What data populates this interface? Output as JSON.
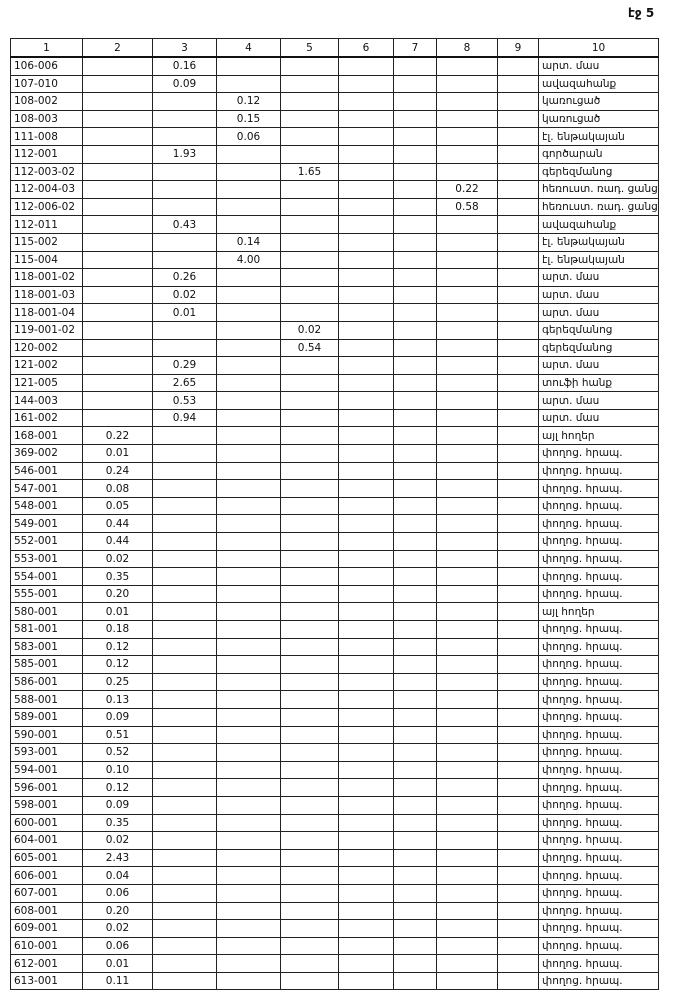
{
  "header": {
    "page": "էջ 5"
  },
  "table": {
    "header": [
      "1",
      "2",
      "3",
      "4",
      "5",
      "6",
      "7",
      "8",
      "9",
      "10"
    ],
    "rows": [
      [
        "106-006",
        null,
        "0.16",
        null,
        null,
        null,
        null,
        null,
        null,
        "արտ. մաս"
      ],
      [
        "107-010",
        null,
        "0.09",
        null,
        null,
        null,
        null,
        null,
        null,
        "ավազահանք"
      ],
      [
        "108-002",
        null,
        null,
        "0.12",
        null,
        null,
        null,
        null,
        null,
        "կառուցած"
      ],
      [
        "108-003",
        null,
        null,
        "0.15",
        null,
        null,
        null,
        null,
        null,
        "կառուցած"
      ],
      [
        "111-008",
        null,
        null,
        "0.06",
        null,
        null,
        null,
        null,
        null,
        "էլ. ենթակայան"
      ],
      [
        "112-001",
        null,
        "1.93",
        null,
        null,
        null,
        null,
        null,
        null,
        "գործարան"
      ],
      [
        "112-003-02",
        null,
        null,
        null,
        "1.65",
        null,
        null,
        null,
        null,
        "գերեզմանոց"
      ],
      [
        "112-004-03",
        null,
        null,
        null,
        null,
        null,
        null,
        "0.22",
        null,
        "հեռուստ. ռադ. ցանց"
      ],
      [
        "112-006-02",
        null,
        null,
        null,
        null,
        null,
        null,
        "0.58",
        null,
        "հեռուստ. ռադ. ցանց"
      ],
      [
        "112-011",
        null,
        "0.43",
        null,
        null,
        null,
        null,
        null,
        null,
        "ավազահանք"
      ],
      [
        "115-002",
        null,
        null,
        "0.14",
        null,
        null,
        null,
        null,
        null,
        "էլ. ենթակայան"
      ],
      [
        "115-004",
        null,
        null,
        "4.00",
        null,
        null,
        null,
        null,
        null,
        "էլ. ենթակայան"
      ],
      [
        "118-001-02",
        null,
        "0.26",
        null,
        null,
        null,
        null,
        null,
        null,
        "արտ. մաս"
      ],
      [
        "118-001-03",
        null,
        "0.02",
        null,
        null,
        null,
        null,
        null,
        null,
        "արտ. մաս"
      ],
      [
        "118-001-04",
        null,
        "0.01",
        null,
        null,
        null,
        null,
        null,
        null,
        "արտ. մաս"
      ],
      [
        "119-001-02",
        null,
        null,
        null,
        "0.02",
        null,
        null,
        null,
        null,
        "գերեզմանոց"
      ],
      [
        "120-002",
        null,
        null,
        null,
        "0.54",
        null,
        null,
        null,
        null,
        "գերեզմանոց"
      ],
      [
        "121-002",
        null,
        "0.29",
        null,
        null,
        null,
        null,
        null,
        null,
        "արտ. մաս"
      ],
      [
        "121-005",
        null,
        "2.65",
        null,
        null,
        null,
        null,
        null,
        null,
        "տուֆի հանք"
      ],
      [
        "144-003",
        null,
        "0.53",
        null,
        null,
        null,
        null,
        null,
        null,
        "արտ. մաս"
      ],
      [
        "161-002",
        null,
        "0.94",
        null,
        null,
        null,
        null,
        null,
        null,
        "արտ. մաս"
      ],
      [
        "168-001",
        "0.22",
        null,
        null,
        null,
        null,
        null,
        null,
        null,
        "այլ հողեր"
      ],
      [
        "369-002",
        "0.01",
        null,
        null,
        null,
        null,
        null,
        null,
        null,
        "փողոց. հրապ."
      ],
      [
        "546-001",
        "0.24",
        null,
        null,
        null,
        null,
        null,
        null,
        null,
        "փողոց. հրապ."
      ],
      [
        "547-001",
        "0.08",
        null,
        null,
        null,
        null,
        null,
        null,
        null,
        "փողոց. հրապ."
      ],
      [
        "548-001",
        "0.05",
        null,
        null,
        null,
        null,
        null,
        null,
        null,
        "փողոց. հրապ."
      ],
      [
        "549-001",
        "0.44",
        null,
        null,
        null,
        null,
        null,
        null,
        null,
        "փողոց. հրապ."
      ],
      [
        "552-001",
        "0.44",
        null,
        null,
        null,
        null,
        null,
        null,
        null,
        "փողոց. հրապ."
      ],
      [
        "553-001",
        "0.02",
        null,
        null,
        null,
        null,
        null,
        null,
        null,
        "փողոց. հրապ."
      ],
      [
        "554-001",
        "0.35",
        null,
        null,
        null,
        null,
        null,
        null,
        null,
        "փողոց. հրապ."
      ],
      [
        "555-001",
        "0.20",
        null,
        null,
        null,
        null,
        null,
        null,
        null,
        "փողոց. հրապ."
      ],
      [
        "580-001",
        "0.01",
        null,
        null,
        null,
        null,
        null,
        null,
        null,
        "այլ հողեր"
      ],
      [
        "581-001",
        "0.18",
        null,
        null,
        null,
        null,
        null,
        null,
        null,
        "փողոց. հրապ."
      ],
      [
        "583-001",
        "0.12",
        null,
        null,
        null,
        null,
        null,
        null,
        null,
        "փողոց. հրապ."
      ],
      [
        "585-001",
        "0.12",
        null,
        null,
        null,
        null,
        null,
        null,
        null,
        "փողոց. հրապ."
      ],
      [
        "586-001",
        "0.25",
        null,
        null,
        null,
        null,
        null,
        null,
        null,
        "փողոց. հրապ."
      ],
      [
        "588-001",
        "0.13",
        null,
        null,
        null,
        null,
        null,
        null,
        null,
        "փողոց. հրապ."
      ],
      [
        "589-001",
        "0.09",
        null,
        null,
        null,
        null,
        null,
        null,
        null,
        "փողոց. հրապ."
      ],
      [
        "590-001",
        "0.51",
        null,
        null,
        null,
        null,
        null,
        null,
        null,
        "փողոց. հրապ."
      ],
      [
        "593-001",
        "0.52",
        null,
        null,
        null,
        null,
        null,
        null,
        null,
        "փողոց. հրապ."
      ],
      [
        "594-001",
        "0.10",
        null,
        null,
        null,
        null,
        null,
        null,
        null,
        "փողոց. հրապ."
      ],
      [
        "596-001",
        "0.12",
        null,
        null,
        null,
        null,
        null,
        null,
        null,
        "փողոց. հրապ."
      ],
      [
        "598-001",
        "0.09",
        null,
        null,
        null,
        null,
        null,
        null,
        null,
        "փողոց. հրապ."
      ],
      [
        "600-001",
        "0.35",
        null,
        null,
        null,
        null,
        null,
        null,
        null,
        "փողոց. հրապ."
      ],
      [
        "604-001",
        "0.02",
        null,
        null,
        null,
        null,
        null,
        null,
        null,
        "փողոց. հրապ."
      ],
      [
        "605-001",
        "2.43",
        null,
        null,
        null,
        null,
        null,
        null,
        null,
        "փողոց. հրապ."
      ],
      [
        "606-001",
        "0.04",
        null,
        null,
        null,
        null,
        null,
        null,
        null,
        "փողոց. հրապ."
      ],
      [
        "607-001",
        "0.06",
        null,
        null,
        null,
        null,
        null,
        null,
        null,
        "փողոց. հրապ."
      ],
      [
        "608-001",
        "0.20",
        null,
        null,
        null,
        null,
        null,
        null,
        null,
        "փողոց. հրապ."
      ],
      [
        "609-001",
        "0.02",
        null,
        null,
        null,
        null,
        null,
        null,
        null,
        "փողոց. հրապ."
      ],
      [
        "610-001",
        "0.06",
        null,
        null,
        null,
        null,
        null,
        null,
        null,
        "փողոց. հրապ."
      ],
      [
        "612-001",
        "0.01",
        null,
        null,
        null,
        null,
        null,
        null,
        null,
        "փողոց. հրապ."
      ],
      [
        "613-001",
        "0.11",
        null,
        null,
        null,
        null,
        null,
        null,
        null,
        "փողոց. հրապ."
      ]
    ]
  }
}
